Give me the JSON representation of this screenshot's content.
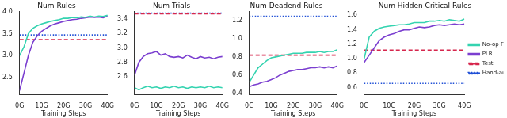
{
  "chart_data": [
    {
      "type": "line",
      "title": "Num Rules",
      "x_label": "Training Steps",
      "x": [
        0,
        2,
        4,
        6,
        8,
        10,
        12,
        14,
        16,
        18,
        20,
        22,
        24,
        26,
        28,
        30,
        32,
        34,
        36,
        38,
        40
      ],
      "xlim": [
        0,
        40
      ],
      "xticks": [
        {
          "value": 0,
          "label": "0G"
        },
        {
          "value": 10,
          "label": "10G"
        },
        {
          "value": 20,
          "label": "20G"
        },
        {
          "value": 30,
          "label": "30G"
        },
        {
          "value": 40,
          "label": "40G"
        }
      ],
      "ylim": [
        2.1,
        4.0
      ],
      "yticks": [
        2.5,
        {
          "value": 3,
          "label": "3.0"
        },
        3.5,
        {
          "value": 4,
          "label": "4.0"
        }
      ],
      "grid": false,
      "series": [
        {
          "name": "No-op Filtering",
          "color": "#34d3b0",
          "line_style": "solid",
          "values": [
            3.0,
            3.2,
            3.5,
            3.62,
            3.68,
            3.72,
            3.75,
            3.78,
            3.8,
            3.82,
            3.85,
            3.85,
            3.87,
            3.86,
            3.88,
            3.87,
            3.9,
            3.88,
            3.9,
            3.89,
            3.92
          ]
        },
        {
          "name": "PLR",
          "color": "#7b3fd0",
          "line_style": "solid",
          "values": [
            2.2,
            2.6,
            3.0,
            3.3,
            3.45,
            3.55,
            3.62,
            3.68,
            3.72,
            3.75,
            3.78,
            3.8,
            3.82,
            3.83,
            3.85,
            3.86,
            3.88,
            3.87,
            3.88,
            3.86,
            3.9
          ]
        },
        {
          "name": "Test",
          "color": "#d6264d",
          "line_style": "dashed",
          "values": [
            3.36,
            3.36,
            3.36,
            3.36,
            3.36,
            3.36,
            3.36,
            3.36,
            3.36,
            3.36,
            3.36,
            3.36,
            3.36,
            3.36,
            3.36,
            3.36,
            3.36,
            3.36,
            3.36,
            3.36,
            3.36
          ]
        },
        {
          "name": "Hand-authored",
          "color": "#1f4fd6",
          "line_style": "dotted",
          "values": [
            3.47,
            3.47,
            3.47,
            3.47,
            3.47,
            3.47,
            3.47,
            3.47,
            3.47,
            3.47,
            3.47,
            3.47,
            3.47,
            3.47,
            3.47,
            3.47,
            3.47,
            3.47,
            3.47,
            3.47,
            3.47
          ]
        }
      ]
    },
    {
      "type": "line",
      "title": "Num Trials",
      "x_label": "Training Steps",
      "x": [
        0,
        2,
        4,
        6,
        8,
        10,
        12,
        14,
        16,
        18,
        20,
        22,
        24,
        26,
        28,
        30,
        32,
        34,
        36,
        38,
        40
      ],
      "xlim": [
        0,
        40
      ],
      "xticks": [
        {
          "value": 0,
          "label": "0G"
        },
        {
          "value": 10,
          "label": "10G"
        },
        {
          "value": 20,
          "label": "20G"
        },
        {
          "value": 30,
          "label": "30G"
        },
        {
          "value": 40,
          "label": "40G"
        }
      ],
      "ylim": [
        2.35,
        3.5
      ],
      "yticks": [
        2.6,
        2.8,
        {
          "value": 3,
          "label": "3.0"
        },
        3.2,
        3.4
      ],
      "grid": false,
      "series": [
        {
          "name": "No-op Filtering",
          "color": "#34d3b0",
          "line_style": "solid",
          "values": [
            2.45,
            2.42,
            2.45,
            2.47,
            2.45,
            2.46,
            2.44,
            2.46,
            2.45,
            2.47,
            2.45,
            2.46,
            2.44,
            2.46,
            2.45,
            2.46,
            2.45,
            2.47,
            2.45,
            2.46,
            2.45
          ]
        },
        {
          "name": "PLR",
          "color": "#7b3fd0",
          "line_style": "solid",
          "values": [
            2.62,
            2.8,
            2.88,
            2.92,
            2.93,
            2.95,
            2.9,
            2.92,
            2.88,
            2.87,
            2.88,
            2.86,
            2.9,
            2.87,
            2.85,
            2.88,
            2.86,
            2.87,
            2.85,
            2.87,
            2.88
          ]
        },
        {
          "name": "Test",
          "color": "#d6264d",
          "line_style": "dashed",
          "values": [
            3.47,
            3.47,
            3.47,
            3.47,
            3.47,
            3.47,
            3.47,
            3.47,
            3.47,
            3.47,
            3.47,
            3.47,
            3.47,
            3.47,
            3.47,
            3.47,
            3.47,
            3.47,
            3.47,
            3.47,
            3.47
          ]
        },
        {
          "name": "Hand-authored",
          "color": "#1f4fd6",
          "line_style": "dotted",
          "values": [
            3.48,
            3.48,
            3.48,
            3.48,
            3.48,
            3.48,
            3.48,
            3.48,
            3.48,
            3.48,
            3.48,
            3.48,
            3.48,
            3.48,
            3.48,
            3.48,
            3.48,
            3.48,
            3.48,
            3.48,
            3.48
          ]
        }
      ]
    },
    {
      "type": "line",
      "title": "Num Deadend Rules",
      "x_label": "Training Steps",
      "x": [
        0,
        2,
        4,
        6,
        8,
        10,
        12,
        14,
        16,
        18,
        20,
        22,
        24,
        26,
        28,
        30,
        32,
        34,
        36,
        38,
        40
      ],
      "xlim": [
        0,
        40
      ],
      "xticks": [
        {
          "value": 0,
          "label": "0G"
        },
        {
          "value": 10,
          "label": "10G"
        },
        {
          "value": 20,
          "label": "20G"
        },
        {
          "value": 30,
          "label": "30G"
        },
        {
          "value": 40,
          "label": "40G"
        }
      ],
      "ylim": [
        0.38,
        1.3
      ],
      "yticks": [
        0.4,
        0.6,
        0.8,
        {
          "value": 1,
          "label": "1.0"
        },
        1.2
      ],
      "grid": false,
      "series": [
        {
          "name": "No-op Filtering",
          "color": "#34d3b0",
          "line_style": "solid",
          "values": [
            0.52,
            0.6,
            0.68,
            0.72,
            0.76,
            0.79,
            0.8,
            0.81,
            0.82,
            0.83,
            0.84,
            0.84,
            0.84,
            0.85,
            0.85,
            0.85,
            0.86,
            0.85,
            0.86,
            0.86,
            0.88
          ]
        },
        {
          "name": "PLR",
          "color": "#7b3fd0",
          "line_style": "solid",
          "values": [
            0.47,
            0.49,
            0.5,
            0.52,
            0.53,
            0.55,
            0.57,
            0.6,
            0.62,
            0.64,
            0.65,
            0.66,
            0.66,
            0.67,
            0.68,
            0.68,
            0.69,
            0.68,
            0.69,
            0.68,
            0.7
          ]
        },
        {
          "name": "Test",
          "color": "#d6264d",
          "line_style": "dashed",
          "values": [
            0.82,
            0.82,
            0.82,
            0.82,
            0.82,
            0.82,
            0.82,
            0.82,
            0.82,
            0.82,
            0.82,
            0.82,
            0.82,
            0.82,
            0.82,
            0.82,
            0.82,
            0.82,
            0.82,
            0.82,
            0.82
          ]
        },
        {
          "name": "Hand-authored",
          "color": "#1f4fd6",
          "line_style": "dotted",
          "values": [
            1.25,
            1.25,
            1.25,
            1.25,
            1.25,
            1.25,
            1.25,
            1.25,
            1.25,
            1.25,
            1.25,
            1.25,
            1.25,
            1.25,
            1.25,
            1.25,
            1.25,
            1.25,
            1.25,
            1.25,
            1.25
          ]
        }
      ]
    },
    {
      "type": "line",
      "title": "Num Hidden Critical Rules",
      "x_label": "Training Steps",
      "x": [
        0,
        2,
        4,
        6,
        8,
        10,
        12,
        14,
        16,
        18,
        20,
        22,
        24,
        26,
        28,
        30,
        32,
        34,
        36,
        38,
        40
      ],
      "xlim": [
        0,
        40
      ],
      "xticks": [
        {
          "value": 0,
          "label": "0G"
        },
        {
          "value": 10,
          "label": "10G"
        },
        {
          "value": 20,
          "label": "20G"
        },
        {
          "value": 30,
          "label": "30G"
        },
        {
          "value": 40,
          "label": "40G"
        }
      ],
      "ylim": [
        0.5,
        1.65
      ],
      "yticks": [
        0.6,
        0.8,
        {
          "value": 1,
          "label": "1.0"
        },
        1.2,
        1.4,
        1.6
      ],
      "grid": false,
      "legend": "right",
      "series": [
        {
          "name": "No-op Filtering",
          "color": "#34d3b0",
          "line_style": "solid",
          "values": [
            1.0,
            1.3,
            1.38,
            1.42,
            1.44,
            1.45,
            1.46,
            1.47,
            1.47,
            1.48,
            1.5,
            1.5,
            1.5,
            1.52,
            1.52,
            1.53,
            1.52,
            1.54,
            1.53,
            1.52,
            1.55
          ]
        },
        {
          "name": "PLR",
          "color": "#7b3fd0",
          "line_style": "solid",
          "values": [
            0.95,
            1.05,
            1.15,
            1.25,
            1.3,
            1.33,
            1.35,
            1.38,
            1.4,
            1.4,
            1.42,
            1.44,
            1.43,
            1.44,
            1.46,
            1.47,
            1.46,
            1.47,
            1.48,
            1.47,
            1.48
          ]
        },
        {
          "name": "Test",
          "color": "#d6264d",
          "line_style": "dashed",
          "values": [
            1.12,
            1.12,
            1.12,
            1.12,
            1.12,
            1.12,
            1.12,
            1.12,
            1.12,
            1.12,
            1.12,
            1.12,
            1.12,
            1.12,
            1.12,
            1.12,
            1.12,
            1.12,
            1.12,
            1.12,
            1.12
          ]
        },
        {
          "name": "Hand-authored",
          "color": "#1f4fd6",
          "line_style": "dotted",
          "values": [
            0.66,
            0.66,
            0.66,
            0.66,
            0.66,
            0.66,
            0.66,
            0.66,
            0.66,
            0.66,
            0.66,
            0.66,
            0.66,
            0.66,
            0.66,
            0.66,
            0.66,
            0.66,
            0.66,
            0.66,
            0.66
          ]
        }
      ]
    }
  ]
}
